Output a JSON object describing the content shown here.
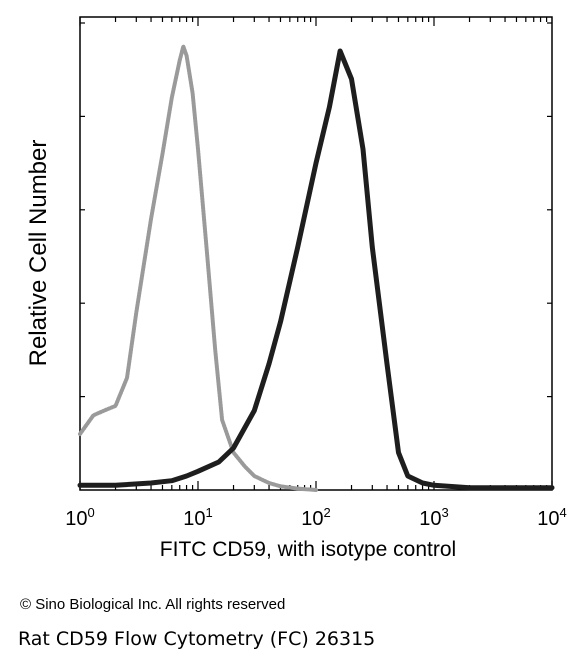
{
  "chart_data": {
    "type": "line",
    "xlabel": "FITC CD59, with isotype control",
    "ylabel": "Relative Cell Number",
    "x_scale": "log",
    "xlim": [
      1,
      10000
    ],
    "x_ticks": [
      {
        "value": 1,
        "base": "10",
        "exp": "0"
      },
      {
        "value": 10,
        "base": "10",
        "exp": "1"
      },
      {
        "value": 100,
        "base": "10",
        "exp": "2"
      },
      {
        "value": 1000,
        "base": "10",
        "exp": "3"
      },
      {
        "value": 10000,
        "base": "10",
        "exp": "4"
      }
    ],
    "ylim": [
      0,
      100
    ],
    "series": [
      {
        "role": "isotype control",
        "color": "#9a9a9a",
        "x": [
          1,
          1.3,
          1.6,
          2,
          2.5,
          3,
          4,
          5,
          6,
          7,
          7.5,
          8,
          9,
          10,
          12,
          14,
          16,
          20,
          25,
          30,
          40,
          50,
          70,
          100
        ],
        "y": [
          12,
          16,
          17,
          18,
          24,
          38,
          58,
          72,
          84,
          92,
          95,
          93,
          85,
          73,
          50,
          30,
          15,
          8,
          5,
          3,
          1.5,
          0.8,
          0.3,
          0
        ]
      },
      {
        "role": "FITC CD59",
        "color": "#1e1e1e",
        "x": [
          1,
          2,
          4,
          6,
          8,
          10,
          15,
          20,
          30,
          40,
          50,
          70,
          100,
          130,
          160,
          200,
          250,
          300,
          400,
          500,
          600,
          800,
          1000,
          2000,
          5000,
          10000
        ],
        "y": [
          1,
          1,
          1.5,
          2,
          3,
          4,
          6,
          9,
          17,
          27,
          36,
          52,
          70,
          82,
          94,
          88,
          73,
          52,
          27,
          8,
          3,
          1.5,
          1,
          0.5,
          0.5,
          0.5
        ]
      }
    ]
  },
  "footer": {
    "copyright": "© Sino Biological Inc. All rights reserved",
    "caption": "Rat CD59 Flow Cytometry (FC) 26315"
  }
}
